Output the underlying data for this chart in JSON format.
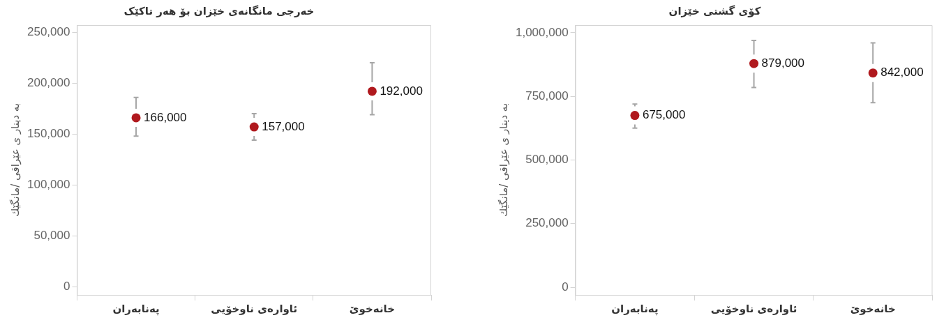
{
  "chart_data": [
    {
      "type": "scatter",
      "title": "خەرجی مانگانەی خێزان بۆ هەر تاکێک",
      "ylabel": "بە دینار ی عێراقی /مانگێك",
      "categories": [
        "پەنابەران",
        "ئاوارەی ناوخۆیی",
        "خانەخوێ"
      ],
      "values": [
        166000,
        157000,
        192000
      ],
      "color": "#b0191e",
      "errors": [
        [
          148000,
          186000
        ],
        [
          144000,
          170000
        ],
        [
          169000,
          220000
        ]
      ],
      "ylim": [
        -8000,
        257000
      ],
      "yticks": [
        {
          "value": 0,
          "label": "0"
        },
        {
          "value": 50000,
          "label": "50,000"
        },
        {
          "value": 100000,
          "label": "100,000"
        },
        {
          "value": 150000,
          "label": "150,000"
        },
        {
          "value": 200000,
          "label": "200,000"
        },
        {
          "value": 250000,
          "label": "250,000"
        }
      ],
      "value_labels": [
        "166,000",
        "157,000",
        "192,000"
      ],
      "grid": false,
      "legend": false,
      "marker": "circle"
    },
    {
      "type": "scatter",
      "title": "کۆی گشتی خێزان",
      "ylabel": "بە دینار ی عێراقی /مانگێك",
      "categories": [
        "پەنابەران",
        "ئاوارەی ناوخۆیی",
        "خانەخوێ"
      ],
      "values": [
        675000,
        879000,
        842000
      ],
      "color": "#b0191e",
      "errors": [
        [
          625000,
          720000
        ],
        [
          785000,
          970000
        ],
        [
          725000,
          960000
        ]
      ],
      "ylim": [
        -30000,
        1030000
      ],
      "yticks": [
        {
          "value": 0,
          "label": "0"
        },
        {
          "value": 250000,
          "label": "250,000"
        },
        {
          "value": 500000,
          "label": "500,000"
        },
        {
          "value": 750000,
          "label": "750,000"
        },
        {
          "value": 1000000,
          "label": "1,000,000"
        }
      ],
      "value_labels": [
        "675,000",
        "879,000",
        "842,000"
      ],
      "grid": false,
      "legend": false,
      "marker": "circle"
    }
  ]
}
